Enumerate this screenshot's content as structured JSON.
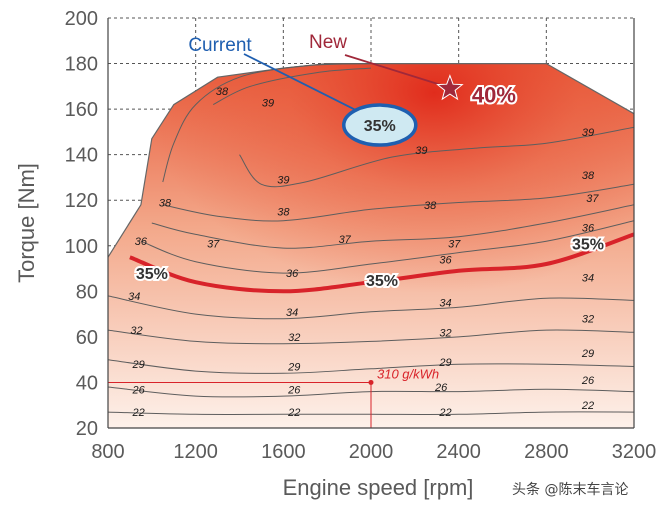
{
  "chart_data": {
    "type": "contour",
    "xlabel": "Engine speed [rpm]",
    "ylabel": "Torque [Nm]",
    "xlim": [
      800,
      3200
    ],
    "ylim": [
      20,
      200
    ],
    "x_ticks": [
      "800",
      "1200",
      "1600",
      "2000",
      "2400",
      "2800",
      "3200"
    ],
    "y_ticks": [
      "200",
      "180",
      "160",
      "140",
      "120",
      "100",
      "80",
      "60",
      "40",
      "20"
    ],
    "grid": "dashed",
    "colors": {
      "high": "#e23a22",
      "low": "#fbe7dc",
      "bold_line": "#d8232a",
      "current_fill": "#cfe9f2",
      "current_stroke": "#1f5fb0",
      "new": "#a0283a"
    },
    "contours": [
      {
        "label": "22",
        "points": [
          [
            800,
            27
          ],
          [
            1200,
            26
          ],
          [
            1600,
            26
          ],
          [
            2000,
            26
          ],
          [
            2400,
            26
          ],
          [
            2800,
            27
          ],
          [
            3200,
            27
          ]
        ]
      },
      {
        "label": "26",
        "points": [
          [
            800,
            38
          ],
          [
            1200,
            34
          ],
          [
            1600,
            34
          ],
          [
            2000,
            36
          ],
          [
            2400,
            36
          ],
          [
            2800,
            37
          ],
          [
            3200,
            36
          ]
        ]
      },
      {
        "label": "29",
        "points": [
          [
            800,
            50
          ],
          [
            1200,
            45
          ],
          [
            1600,
            44
          ],
          [
            2000,
            46
          ],
          [
            2400,
            48
          ],
          [
            2800,
            48
          ],
          [
            3200,
            47
          ]
        ]
      },
      {
        "label": "32",
        "points": [
          [
            800,
            63
          ],
          [
            1200,
            58
          ],
          [
            1600,
            57
          ],
          [
            2000,
            58
          ],
          [
            2400,
            60
          ],
          [
            2800,
            63
          ],
          [
            3200,
            62
          ]
        ]
      },
      {
        "label": "34",
        "points": [
          [
            800,
            78
          ],
          [
            1200,
            70
          ],
          [
            1600,
            68
          ],
          [
            2000,
            71
          ],
          [
            2400,
            73
          ],
          [
            2800,
            77
          ],
          [
            3200,
            76
          ]
        ]
      },
      {
        "label": "35%",
        "bold": true,
        "points": [
          [
            900,
            95
          ],
          [
            1200,
            84
          ],
          [
            1600,
            80
          ],
          [
            2000,
            84
          ],
          [
            2400,
            89
          ],
          [
            2800,
            92
          ],
          [
            3200,
            105
          ]
        ]
      },
      {
        "label": "36",
        "points": [
          [
            950,
            102
          ],
          [
            1200,
            93
          ],
          [
            1600,
            88
          ],
          [
            2000,
            92
          ],
          [
            2400,
            97
          ],
          [
            2800,
            102
          ],
          [
            3200,
            111
          ]
        ]
      },
      {
        "label": "37",
        "points": [
          [
            1000,
            110
          ],
          [
            1200,
            105
          ],
          [
            1600,
            99
          ],
          [
            2000,
            102
          ],
          [
            2400,
            104
          ],
          [
            2800,
            110
          ],
          [
            3200,
            118
          ]
        ]
      },
      {
        "label": "38",
        "points": [
          [
            1050,
            118
          ],
          [
            1300,
            113
          ],
          [
            1600,
            111
          ],
          [
            2000,
            116
          ],
          [
            2400,
            119
          ],
          [
            2800,
            121
          ],
          [
            3200,
            127
          ]
        ]
      },
      {
        "label": "39",
        "points": [
          [
            1400,
            140
          ],
          [
            1500,
            127
          ],
          [
            1700,
            128
          ],
          [
            2100,
            139
          ],
          [
            2500,
            143
          ],
          [
            2800,
            145
          ],
          [
            3200,
            152
          ]
        ]
      },
      {
        "label": "38",
        "points": [
          [
            1050,
            128
          ],
          [
            1100,
            145
          ],
          [
            1200,
            162
          ],
          [
            1400,
            174
          ],
          [
            1700,
            179
          ],
          [
            2000,
            180
          ]
        ]
      },
      {
        "label": "39",
        "points": [
          [
            1280,
            162
          ],
          [
            1450,
            170
          ],
          [
            1750,
            176
          ],
          [
            2000,
            178
          ]
        ]
      }
    ],
    "contour_labels": [
      {
        "text": "22",
        "x": 940,
        "y": 27
      },
      {
        "text": "22",
        "x": 1650,
        "y": 27
      },
      {
        "text": "22",
        "x": 2340,
        "y": 27
      },
      {
        "text": "22",
        "x": 2990,
        "y": 30
      },
      {
        "text": "26",
        "x": 940,
        "y": 37
      },
      {
        "text": "26",
        "x": 1650,
        "y": 37
      },
      {
        "text": "26",
        "x": 2320,
        "y": 38
      },
      {
        "text": "26",
        "x": 2990,
        "y": 41
      },
      {
        "text": "29",
        "x": 940,
        "y": 48
      },
      {
        "text": "29",
        "x": 1650,
        "y": 47
      },
      {
        "text": "29",
        "x": 2340,
        "y": 49
      },
      {
        "text": "29",
        "x": 2990,
        "y": 53
      },
      {
        "text": "32",
        "x": 930,
        "y": 63
      },
      {
        "text": "32",
        "x": 1650,
        "y": 60
      },
      {
        "text": "32",
        "x": 2340,
        "y": 62
      },
      {
        "text": "32",
        "x": 2990,
        "y": 68
      },
      {
        "text": "34",
        "x": 920,
        "y": 78
      },
      {
        "text": "34",
        "x": 1640,
        "y": 71
      },
      {
        "text": "34",
        "x": 2340,
        "y": 75
      },
      {
        "text": "34",
        "x": 2990,
        "y": 86
      },
      {
        "text": "36",
        "x": 950,
        "y": 102
      },
      {
        "text": "36",
        "x": 1640,
        "y": 88
      },
      {
        "text": "36",
        "x": 2340,
        "y": 94
      },
      {
        "text": "36",
        "x": 2990,
        "y": 108
      },
      {
        "text": "37",
        "x": 1280,
        "y": 101
      },
      {
        "text": "37",
        "x": 1880,
        "y": 103
      },
      {
        "text": "37",
        "x": 2380,
        "y": 101
      },
      {
        "text": "37",
        "x": 3010,
        "y": 121
      },
      {
        "text": "38",
        "x": 1060,
        "y": 119
      },
      {
        "text": "38",
        "x": 1600,
        "y": 115
      },
      {
        "text": "38",
        "x": 2270,
        "y": 118
      },
      {
        "text": "38",
        "x": 2990,
        "y": 131
      },
      {
        "text": "38",
        "x": 1320,
        "y": 168
      },
      {
        "text": "39",
        "x": 1530,
        "y": 163
      },
      {
        "text": "39",
        "x": 1600,
        "y": 129
      },
      {
        "text": "39",
        "x": 2230,
        "y": 142
      },
      {
        "text": "39",
        "x": 2990,
        "y": 150
      }
    ],
    "efficiency_labels": [
      {
        "text": "35%",
        "x": 1000,
        "y": 88
      },
      {
        "text": "35%",
        "x": 2050,
        "y": 85
      },
      {
        "text": "35%",
        "x": 2990,
        "y": 101
      }
    ],
    "current": {
      "label": "Current",
      "value": "35%",
      "x": 2040,
      "y": 153
    },
    "new": {
      "label": "New",
      "value": "40%",
      "x": 2360,
      "y": 169
    },
    "operating_point": {
      "x": 2000,
      "y": 40,
      "text": "310 g/kWh"
    }
  },
  "watermark": "头条 @陈末车言论"
}
